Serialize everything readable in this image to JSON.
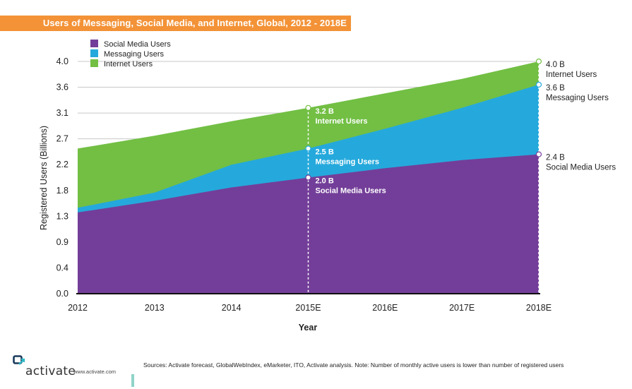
{
  "header": {
    "title": "Users of Messaging, Social Media, and Internet, Global, 2012 - 2018E"
  },
  "colors": {
    "title_bar": "#f39237",
    "social_media": "#733e99",
    "messaging": "#25a9dc",
    "internet": "#72bf44"
  },
  "chart_data": {
    "type": "area",
    "stacked_display": "overlapping areas (each series plotted as its own total)",
    "title": "Users of Messaging, Social Media, and Internet, Global, 2012 - 2018E",
    "xlabel": "Year",
    "ylabel": "Registered Users (Billions)",
    "categories": [
      "2012",
      "2013",
      "2014",
      "2015E",
      "2016E",
      "2017E",
      "2018E"
    ],
    "ylim": [
      0,
      4.0
    ],
    "y_ticks": [
      "0.0",
      "0.4",
      "0.9",
      "1.3",
      "1.8",
      "2.2",
      "2.7",
      "3.1",
      "3.6",
      "4.0"
    ],
    "grid": "horizontal",
    "legend_position": "top-left",
    "series": [
      {
        "name": "Internet Users",
        "color": "#72bf44",
        "values": [
          2.5,
          2.72,
          2.97,
          3.2,
          3.45,
          3.7,
          4.0
        ]
      },
      {
        "name": "Messaging Users",
        "color": "#25a9dc",
        "values": [
          1.48,
          1.74,
          2.22,
          2.5,
          2.84,
          3.2,
          3.6
        ]
      },
      {
        "name": "Social Media Users",
        "color": "#733e99",
        "values": [
          1.4,
          1.6,
          1.83,
          2.0,
          2.16,
          2.3,
          2.4
        ]
      }
    ],
    "legend": [
      "Social Media Users",
      "Messaging Users",
      "Internet Users"
    ],
    "annotations": [
      {
        "category": "2015E",
        "series": "Internet Users",
        "value_label": "3.2 B",
        "label": "Internet Users",
        "value": 3.2,
        "placement": "inside"
      },
      {
        "category": "2015E",
        "series": "Messaging Users",
        "value_label": "2.5 B",
        "label": "Messaging Users",
        "value": 2.5,
        "placement": "inside"
      },
      {
        "category": "2015E",
        "series": "Social Media Users",
        "value_label": "2.0 B",
        "label": "Social Media Users",
        "value": 2.0,
        "placement": "inside"
      },
      {
        "category": "2018E",
        "series": "Internet Users",
        "value_label": "4.0 B",
        "label": "Internet Users",
        "value": 4.0,
        "placement": "outside"
      },
      {
        "category": "2018E",
        "series": "Messaging Users",
        "value_label": "3.6 B",
        "label": "Messaging Users",
        "value": 3.6,
        "placement": "outside"
      },
      {
        "category": "2018E",
        "series": "Social Media Users",
        "value_label": "2.4 B",
        "label": "Social Media Users",
        "value": 2.4,
        "placement": "outside"
      }
    ]
  },
  "footer": {
    "logo_text": "activate",
    "url": "www.activate.com",
    "sources": "Sources: Activate forecast, GlobalWebIndex, eMarketer, ITO, Activate analysis. Note: Number of monthly active users is lower than number of registered users"
  }
}
